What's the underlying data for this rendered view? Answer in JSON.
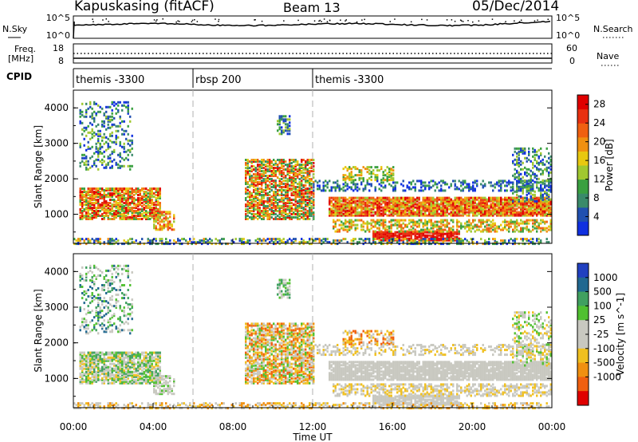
{
  "header": {
    "station": "Kapuskasing (fitACF)",
    "beam": "Beam 13",
    "date": "05/Dec/2014"
  },
  "top_panels": {
    "nsky_label": "N.Sky",
    "nsky_ticks": [
      "10^5",
      "10^0"
    ],
    "nsearch_label": "N.Search",
    "nsearch_ticks": [
      "10^5",
      "10^0"
    ],
    "freq_label": "Freq.",
    "freq_unit": "[MHz]",
    "freq_ticks": [
      "18",
      "8"
    ],
    "nave_label": "Nave",
    "nave_ticks": [
      "60",
      "0"
    ],
    "cpid_label": "CPID"
  },
  "cpid_segments": [
    {
      "label": "themis -3300",
      "start_hour": 0,
      "end_hour": 6
    },
    {
      "label": "rbsp 200",
      "start_hour": 6,
      "end_hour": 12
    },
    {
      "label": "themis -3300",
      "start_hour": 12,
      "end_hour": 24
    }
  ],
  "chart_data": [
    {
      "type": "heatmap",
      "name": "power",
      "ylabel": "Slant Range [km]",
      "yticks": [
        1000,
        2000,
        3000,
        4000
      ],
      "ylim": [
        180,
        4500
      ],
      "xlim": [
        0,
        24
      ],
      "colorbar_label": "Power [dB]",
      "colorbar_ticks": [
        4,
        8,
        12,
        16,
        20,
        24,
        28
      ],
      "colorbar_range": [
        0,
        30
      ],
      "colors": [
        "#1030e0",
        "#2050b0",
        "#3a8a6a",
        "#3aa040",
        "#a0c830",
        "#e8c810",
        "#f09010",
        "#f06010",
        "#e83010",
        "#e00000"
      ]
    },
    {
      "type": "heatmap",
      "name": "velocity",
      "ylabel": "Slant Range [km]",
      "yticks": [
        1000,
        2000,
        3000,
        4000
      ],
      "ylim": [
        180,
        4500
      ],
      "xlim": [
        0,
        24
      ],
      "xticks": [
        "00:00",
        "04:00",
        "08:00",
        "12:00",
        "16:00",
        "20:00",
        "00:00"
      ],
      "xlabel": "Time UT",
      "colorbar_label": "Velocity [m s^-1]",
      "colorbar_ticks": [
        "1000",
        "500",
        "100",
        "25",
        "-25",
        "-100",
        "-500",
        "-1000"
      ],
      "colors": [
        "#2040c0",
        "#206890",
        "#40a060",
        "#50c030",
        "#c8c8c0",
        "#c8c8c0",
        "#f0c020",
        "#f09010",
        "#f06010",
        "#e00000"
      ]
    }
  ]
}
